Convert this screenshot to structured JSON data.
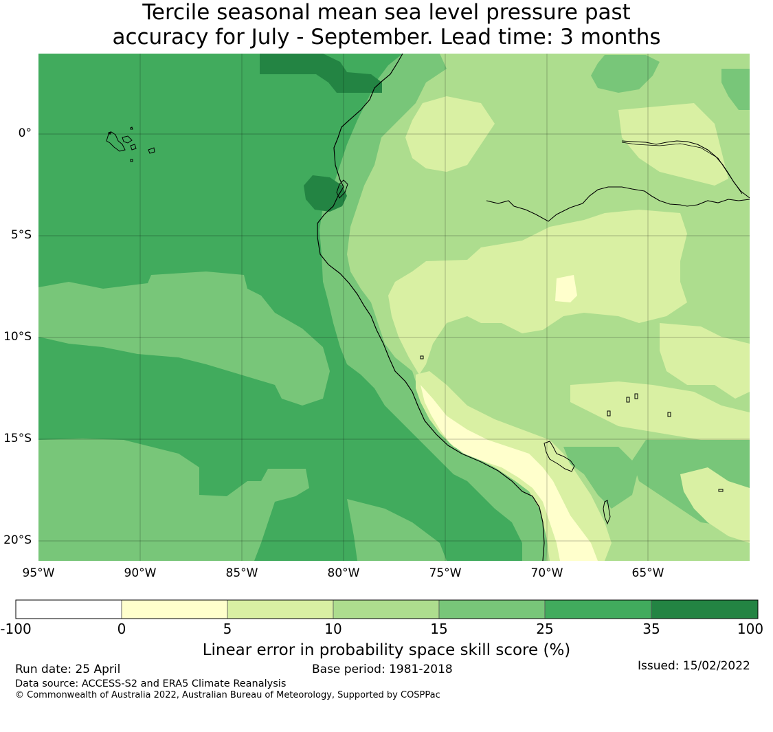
{
  "title": {
    "line1": "Tercile seasonal mean sea level pressure past",
    "line2": "accuracy for July - September. Lead time: 3 months"
  },
  "map": {
    "latitude_labels": [
      "0°",
      "5°S",
      "10°S",
      "15°S",
      "20°S"
    ],
    "longitude_labels": [
      "95°W",
      "90°W",
      "85°W",
      "80°W",
      "75°W",
      "70°W",
      "65°W"
    ]
  },
  "colorbar": {
    "ticks": [
      "-100",
      "0",
      "5",
      "10",
      "15",
      "25",
      "35",
      "100"
    ],
    "colors": [
      "#ffffff",
      "#ffffcc",
      "#d9f0a3",
      "#addd8e",
      "#78c679",
      "#41ab5d",
      "#238443"
    ],
    "label": "Linear error in probability space skill score (%)"
  },
  "footer": {
    "run_date": "Run date: 25 April",
    "base_period": "Base period: 1981-2018",
    "issued": "Issued: 15/02/2022",
    "data_source": "Data source: ACCESS-S2 and ERA5 Climate Reanalysis",
    "copyright": "© Commonwealth of Australia 2022, Australian Bureau of Meteorology, Supported by COSPPac"
  }
}
